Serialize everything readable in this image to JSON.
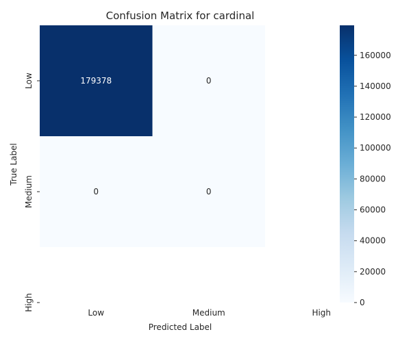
{
  "chart_data": {
    "type": "heatmap",
    "title": "Confusion Matrix for cardinal",
    "xlabel": "Predicted Label",
    "ylabel": "True Label",
    "x_categories": [
      "Low",
      "Medium",
      "High"
    ],
    "y_categories": [
      "Low",
      "Medium",
      "High"
    ],
    "values": [
      [
        179378,
        0,
        null
      ],
      [
        0,
        0,
        null
      ],
      [
        null,
        null,
        null
      ]
    ],
    "colormap": "Blues",
    "color_low": "#f7fbff",
    "color_high": "#08306b",
    "colorbar_range": [
      0,
      179378
    ],
    "colorbar_ticks": [
      "0",
      "20000",
      "40000",
      "60000",
      "80000",
      "100000",
      "120000",
      "140000",
      "160000"
    ],
    "colorbar_tick_values": [
      0,
      20000,
      40000,
      60000,
      80000,
      100000,
      120000,
      140000,
      160000
    ]
  }
}
